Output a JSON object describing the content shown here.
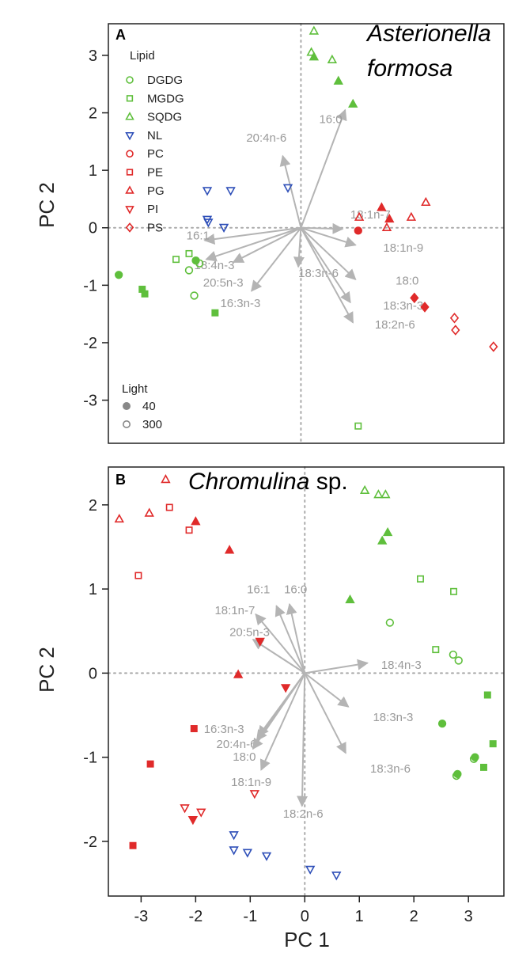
{
  "colors": {
    "green": "#5fbf3c",
    "red": "#e02a2a",
    "blue": "#2e4fb8",
    "arrow": "#b4b4b4",
    "arrow_label": "#9a9a9a",
    "legend_light": "#888888"
  },
  "xlabel_shared": "PC 1",
  "chart_data": [
    {
      "type": "scatter",
      "panel": "A",
      "title_italic": "Asterionella formosa",
      "title_italic_line1": "Asterionella",
      "title_italic_line2": "formosa",
      "xlabel": "",
      "ylabel": "PC 2",
      "xlim": [
        -3.7,
        3.9
      ],
      "ylim": [
        -3.75,
        3.55
      ],
      "xticks": [],
      "yticks": [
        -3,
        -2,
        -1,
        0,
        1,
        2,
        3
      ],
      "grid": false,
      "zero_lines": "dotted",
      "legend": {
        "position": "top-left",
        "lipid_title": "Lipid",
        "lipid_entries": [
          {
            "label": "DGDG",
            "shape": "circle",
            "color": "green"
          },
          {
            "label": "MGDG",
            "shape": "square",
            "color": "green"
          },
          {
            "label": "SQDG",
            "shape": "triangle",
            "color": "green"
          },
          {
            "label": "NL",
            "shape": "triangle-down",
            "color": "blue"
          },
          {
            "label": "PC",
            "shape": "circle",
            "color": "red"
          },
          {
            "label": "PE",
            "shape": "square",
            "color": "red"
          },
          {
            "label": "PG",
            "shape": "triangle",
            "color": "red"
          },
          {
            "label": "PI",
            "shape": "triangle-down",
            "color": "red"
          },
          {
            "label": "PS",
            "shape": "diamond",
            "color": "red"
          }
        ],
        "light_title": "Light",
        "light_entries": [
          {
            "label": "40",
            "fill": "filled"
          },
          {
            "label": "300",
            "fill": "open"
          }
        ]
      },
      "arrows": [
        {
          "label": "16:0",
          "x": 0.85,
          "y": 2.05,
          "lx": 0.35,
          "ly": 1.82
        },
        {
          "label": "20:4n-6",
          "x": -0.35,
          "y": 1.25,
          "lx": -1.05,
          "ly": 1.5
        },
        {
          "label": "18:1n-7",
          "x": 0.8,
          "y": -0.02,
          "lx": 0.95,
          "ly": 0.16
        },
        {
          "label": "18:1n-9",
          "x": 1.05,
          "y": -0.3,
          "lx": 1.58,
          "ly": -0.42
        },
        {
          "label": "16:1",
          "x": -1.85,
          "y": -0.22,
          "lx": -2.2,
          "ly": -0.2
        },
        {
          "label": "18:4n-3",
          "x": -1.82,
          "y": -0.55,
          "lx": -2.05,
          "ly": -0.72
        },
        {
          "label": "20:5n-3",
          "x": -1.3,
          "y": -0.6,
          "lx": -1.88,
          "ly": -1.02
        },
        {
          "label": "16:3n-3",
          "x": -0.95,
          "y": -1.1,
          "lx": -1.55,
          "ly": -1.38
        },
        {
          "label": "18:3n-6",
          "x": -0.05,
          "y": -0.68,
          "lx": -0.05,
          "ly": -0.86
        },
        {
          "label": "18:0",
          "x": 1.05,
          "y": -0.9,
          "lx": 1.82,
          "ly": -0.99
        },
        {
          "label": "18:3n-3",
          "x": 0.95,
          "y": -1.3,
          "lx": 1.58,
          "ly": -1.42
        },
        {
          "label": "18:2n-6",
          "x": 1.0,
          "y": -1.65,
          "lx": 1.42,
          "ly": -1.75
        }
      ],
      "points": [
        {
          "lipid": "SQDG",
          "light": "300",
          "x": 0.25,
          "y": 3.42
        },
        {
          "lipid": "SQDG",
          "light": "300",
          "x": 0.2,
          "y": 3.05
        },
        {
          "lipid": "SQDG",
          "light": "40",
          "x": 0.25,
          "y": 2.97
        },
        {
          "lipid": "SQDG",
          "light": "300",
          "x": 0.6,
          "y": 2.92
        },
        {
          "lipid": "SQDG",
          "light": "40",
          "x": 0.72,
          "y": 2.55
        },
        {
          "lipid": "SQDG",
          "light": "40",
          "x": 1.0,
          "y": 2.15
        },
        {
          "lipid": "MGDG",
          "light": "300",
          "x": 1.1,
          "y": -3.45
        },
        {
          "lipid": "MGDG",
          "light": "300",
          "x": -2.15,
          "y": -0.45
        },
        {
          "lipid": "MGDG",
          "light": "300",
          "x": -2.4,
          "y": -0.55
        },
        {
          "lipid": "MGDG",
          "light": "40",
          "x": -3.05,
          "y": -1.07
        },
        {
          "lipid": "MGDG",
          "light": "40",
          "x": -3.0,
          "y": -1.15
        },
        {
          "lipid": "MGDG",
          "light": "40",
          "x": -1.65,
          "y": -1.48
        },
        {
          "lipid": "DGDG",
          "light": "40",
          "x": -3.5,
          "y": -0.82
        },
        {
          "lipid": "DGDG",
          "light": "40",
          "x": -2.02,
          "y": -0.57
        },
        {
          "lipid": "DGDG",
          "light": "300",
          "x": -1.95,
          "y": -0.62
        },
        {
          "lipid": "DGDG",
          "light": "300",
          "x": -2.15,
          "y": -0.74
        },
        {
          "lipid": "DGDG",
          "light": "300",
          "x": -2.05,
          "y": -1.18
        },
        {
          "lipid": "NL",
          "light": "300",
          "x": -1.8,
          "y": 0.65
        },
        {
          "lipid": "NL",
          "light": "300",
          "x": -1.35,
          "y": 0.65
        },
        {
          "lipid": "NL",
          "light": "300",
          "x": -0.25,
          "y": 0.7
        },
        {
          "lipid": "NL",
          "light": "300",
          "x": -1.8,
          "y": 0.15
        },
        {
          "lipid": "NL",
          "light": "300",
          "x": -1.78,
          "y": 0.1
        },
        {
          "lipid": "NL",
          "light": "300",
          "x": -1.48,
          "y": 0.01
        },
        {
          "lipid": "PG",
          "light": "300",
          "x": 2.4,
          "y": 0.44
        },
        {
          "lipid": "PG",
          "light": "40",
          "x": 1.55,
          "y": 0.35
        },
        {
          "lipid": "PG",
          "light": "300",
          "x": 1.12,
          "y": 0.18
        },
        {
          "lipid": "PG",
          "light": "300",
          "x": 2.12,
          "y": 0.18
        },
        {
          "lipid": "PG",
          "light": "40",
          "x": 1.7,
          "y": 0.15
        },
        {
          "lipid": "PG",
          "light": "300",
          "x": 1.65,
          "y": 0.0
        },
        {
          "lipid": "PC",
          "light": "40",
          "x": 1.1,
          "y": -0.05
        },
        {
          "lipid": "PS",
          "light": "40",
          "x": 2.18,
          "y": -1.22
        },
        {
          "lipid": "PS",
          "light": "40",
          "x": 2.38,
          "y": -1.38
        },
        {
          "lipid": "PS",
          "light": "300",
          "x": 2.95,
          "y": -1.57
        },
        {
          "lipid": "PS",
          "light": "300",
          "x": 2.97,
          "y": -1.78
        },
        {
          "lipid": "PS",
          "light": "300",
          "x": 3.7,
          "y": -2.07
        }
      ]
    },
    {
      "type": "scatter",
      "panel": "B",
      "title_italic": "Chromulina",
      "title_plain": " sp.",
      "xlabel": "PC 1",
      "ylabel": "PC 2",
      "xlim": [
        -3.6,
        3.65
      ],
      "ylim": [
        -2.65,
        2.45
      ],
      "xticks": [
        -3,
        -2,
        -1,
        0,
        1,
        2,
        3
      ],
      "yticks": [
        -2,
        -1,
        0,
        1,
        2
      ],
      "grid": false,
      "zero_lines": "dotted",
      "arrows": [
        {
          "label": "16:1",
          "x": -0.52,
          "y": 0.8,
          "lx": -1.06,
          "ly": 0.95
        },
        {
          "label": "16:0",
          "x": -0.28,
          "y": 0.82,
          "lx": -0.38,
          "ly": 0.95
        },
        {
          "label": "18:1n-7",
          "x": -0.9,
          "y": 0.7,
          "lx": -1.65,
          "ly": 0.7
        },
        {
          "label": "20:5n-3",
          "x": -0.95,
          "y": 0.4,
          "lx": -1.38,
          "ly": 0.44
        },
        {
          "label": "18:4n-3",
          "x": 1.15,
          "y": 0.12,
          "lx": 1.4,
          "ly": 0.05
        },
        {
          "label": "18:3n-3",
          "x": 0.8,
          "y": -0.4,
          "lx": 1.25,
          "ly": -0.57
        },
        {
          "label": "18:3n-6",
          "x": 0.75,
          "y": -0.95,
          "lx": 1.2,
          "ly": -1.18
        },
        {
          "label": "16:3n-3",
          "x": -0.85,
          "y": -0.75,
          "lx": -1.85,
          "ly": -0.71
        },
        {
          "label": "20:4n-6",
          "x": -0.88,
          "y": -0.8,
          "lx": -1.62,
          "ly": -0.89
        },
        {
          "label": "18:0",
          "x": -0.95,
          "y": -0.9,
          "lx": -1.32,
          "ly": -1.04
        },
        {
          "label": "18:1n-9",
          "x": -0.8,
          "y": -1.15,
          "lx": -1.35,
          "ly": -1.34
        },
        {
          "label": "18:2n-6",
          "x": -0.05,
          "y": -1.58,
          "lx": -0.4,
          "ly": -1.72
        }
      ],
      "points": [
        {
          "lipid": "PG",
          "light": "300",
          "x": -3.4,
          "y": 1.83
        },
        {
          "lipid": "PG",
          "light": "300",
          "x": -2.85,
          "y": 1.9
        },
        {
          "lipid": "PG",
          "light": "300",
          "x": -2.55,
          "y": 2.3
        },
        {
          "lipid": "PG",
          "light": "40",
          "x": -2.0,
          "y": 1.8
        },
        {
          "lipid": "PG",
          "light": "40",
          "x": -1.38,
          "y": 1.46
        },
        {
          "lipid": "PG",
          "light": "40",
          "x": -1.22,
          "y": -0.02
        },
        {
          "lipid": "PE",
          "light": "300",
          "x": -2.48,
          "y": 1.97
        },
        {
          "lipid": "PE",
          "light": "300",
          "x": -2.12,
          "y": 1.7
        },
        {
          "lipid": "PE",
          "light": "300",
          "x": -3.05,
          "y": 1.16
        },
        {
          "lipid": "PE",
          "light": "40",
          "x": -2.03,
          "y": -0.66
        },
        {
          "lipid": "PE",
          "light": "40",
          "x": -2.83,
          "y": -1.08
        },
        {
          "lipid": "PE",
          "light": "40",
          "x": -3.15,
          "y": -2.05
        },
        {
          "lipid": "PI",
          "light": "40",
          "x": -0.82,
          "y": 0.38
        },
        {
          "lipid": "PI",
          "light": "40",
          "x": -0.35,
          "y": -0.17
        },
        {
          "lipid": "PI",
          "light": "300",
          "x": -0.92,
          "y": -1.43
        },
        {
          "lipid": "PI",
          "light": "300",
          "x": -2.2,
          "y": -1.6
        },
        {
          "lipid": "PI",
          "light": "300",
          "x": -1.9,
          "y": -1.65
        },
        {
          "lipid": "PI",
          "light": "40",
          "x": -2.05,
          "y": -1.74
        },
        {
          "lipid": "NL",
          "light": "300",
          "x": -1.3,
          "y": -1.92
        },
        {
          "lipid": "NL",
          "light": "300",
          "x": -1.3,
          "y": -2.1
        },
        {
          "lipid": "NL",
          "light": "300",
          "x": -1.05,
          "y": -2.13
        },
        {
          "lipid": "NL",
          "light": "300",
          "x": -0.7,
          "y": -2.17
        },
        {
          "lipid": "NL",
          "light": "300",
          "x": 0.1,
          "y": -2.33
        },
        {
          "lipid": "NL",
          "light": "300",
          "x": 0.58,
          "y": -2.4
        },
        {
          "lipid": "SQDG",
          "light": "300",
          "x": 1.1,
          "y": 2.17
        },
        {
          "lipid": "SQDG",
          "light": "300",
          "x": 1.35,
          "y": 2.12
        },
        {
          "lipid": "SQDG",
          "light": "300",
          "x": 1.48,
          "y": 2.12
        },
        {
          "lipid": "SQDG",
          "light": "40",
          "x": 1.52,
          "y": 1.67
        },
        {
          "lipid": "SQDG",
          "light": "40",
          "x": 1.42,
          "y": 1.57
        },
        {
          "lipid": "SQDG",
          "light": "40",
          "x": 0.83,
          "y": 0.87
        },
        {
          "lipid": "MGDG",
          "light": "300",
          "x": 2.12,
          "y": 1.12
        },
        {
          "lipid": "MGDG",
          "light": "300",
          "x": 2.73,
          "y": 0.97
        },
        {
          "lipid": "MGDG",
          "light": "300",
          "x": 2.4,
          "y": 0.28
        },
        {
          "lipid": "MGDG",
          "light": "40",
          "x": 3.35,
          "y": -0.26
        },
        {
          "lipid": "MGDG",
          "light": "40",
          "x": 3.45,
          "y": -0.84
        },
        {
          "lipid": "MGDG",
          "light": "40",
          "x": 3.28,
          "y": -1.12
        },
        {
          "lipid": "DGDG",
          "light": "300",
          "x": 1.56,
          "y": 0.6
        },
        {
          "lipid": "DGDG",
          "light": "300",
          "x": 2.72,
          "y": 0.22
        },
        {
          "lipid": "DGDG",
          "light": "300",
          "x": 2.82,
          "y": 0.15
        },
        {
          "lipid": "DGDG",
          "light": "40",
          "x": 2.52,
          "y": -0.6
        },
        {
          "lipid": "DGDG",
          "light": "40",
          "x": 3.12,
          "y": -1.0
        },
        {
          "lipid": "DGDG",
          "light": "300",
          "x": 3.1,
          "y": -1.02
        },
        {
          "lipid": "DGDG",
          "light": "40",
          "x": 2.8,
          "y": -1.2
        },
        {
          "lipid": "DGDG",
          "light": "300",
          "x": 2.78,
          "y": -1.22
        }
      ]
    }
  ]
}
